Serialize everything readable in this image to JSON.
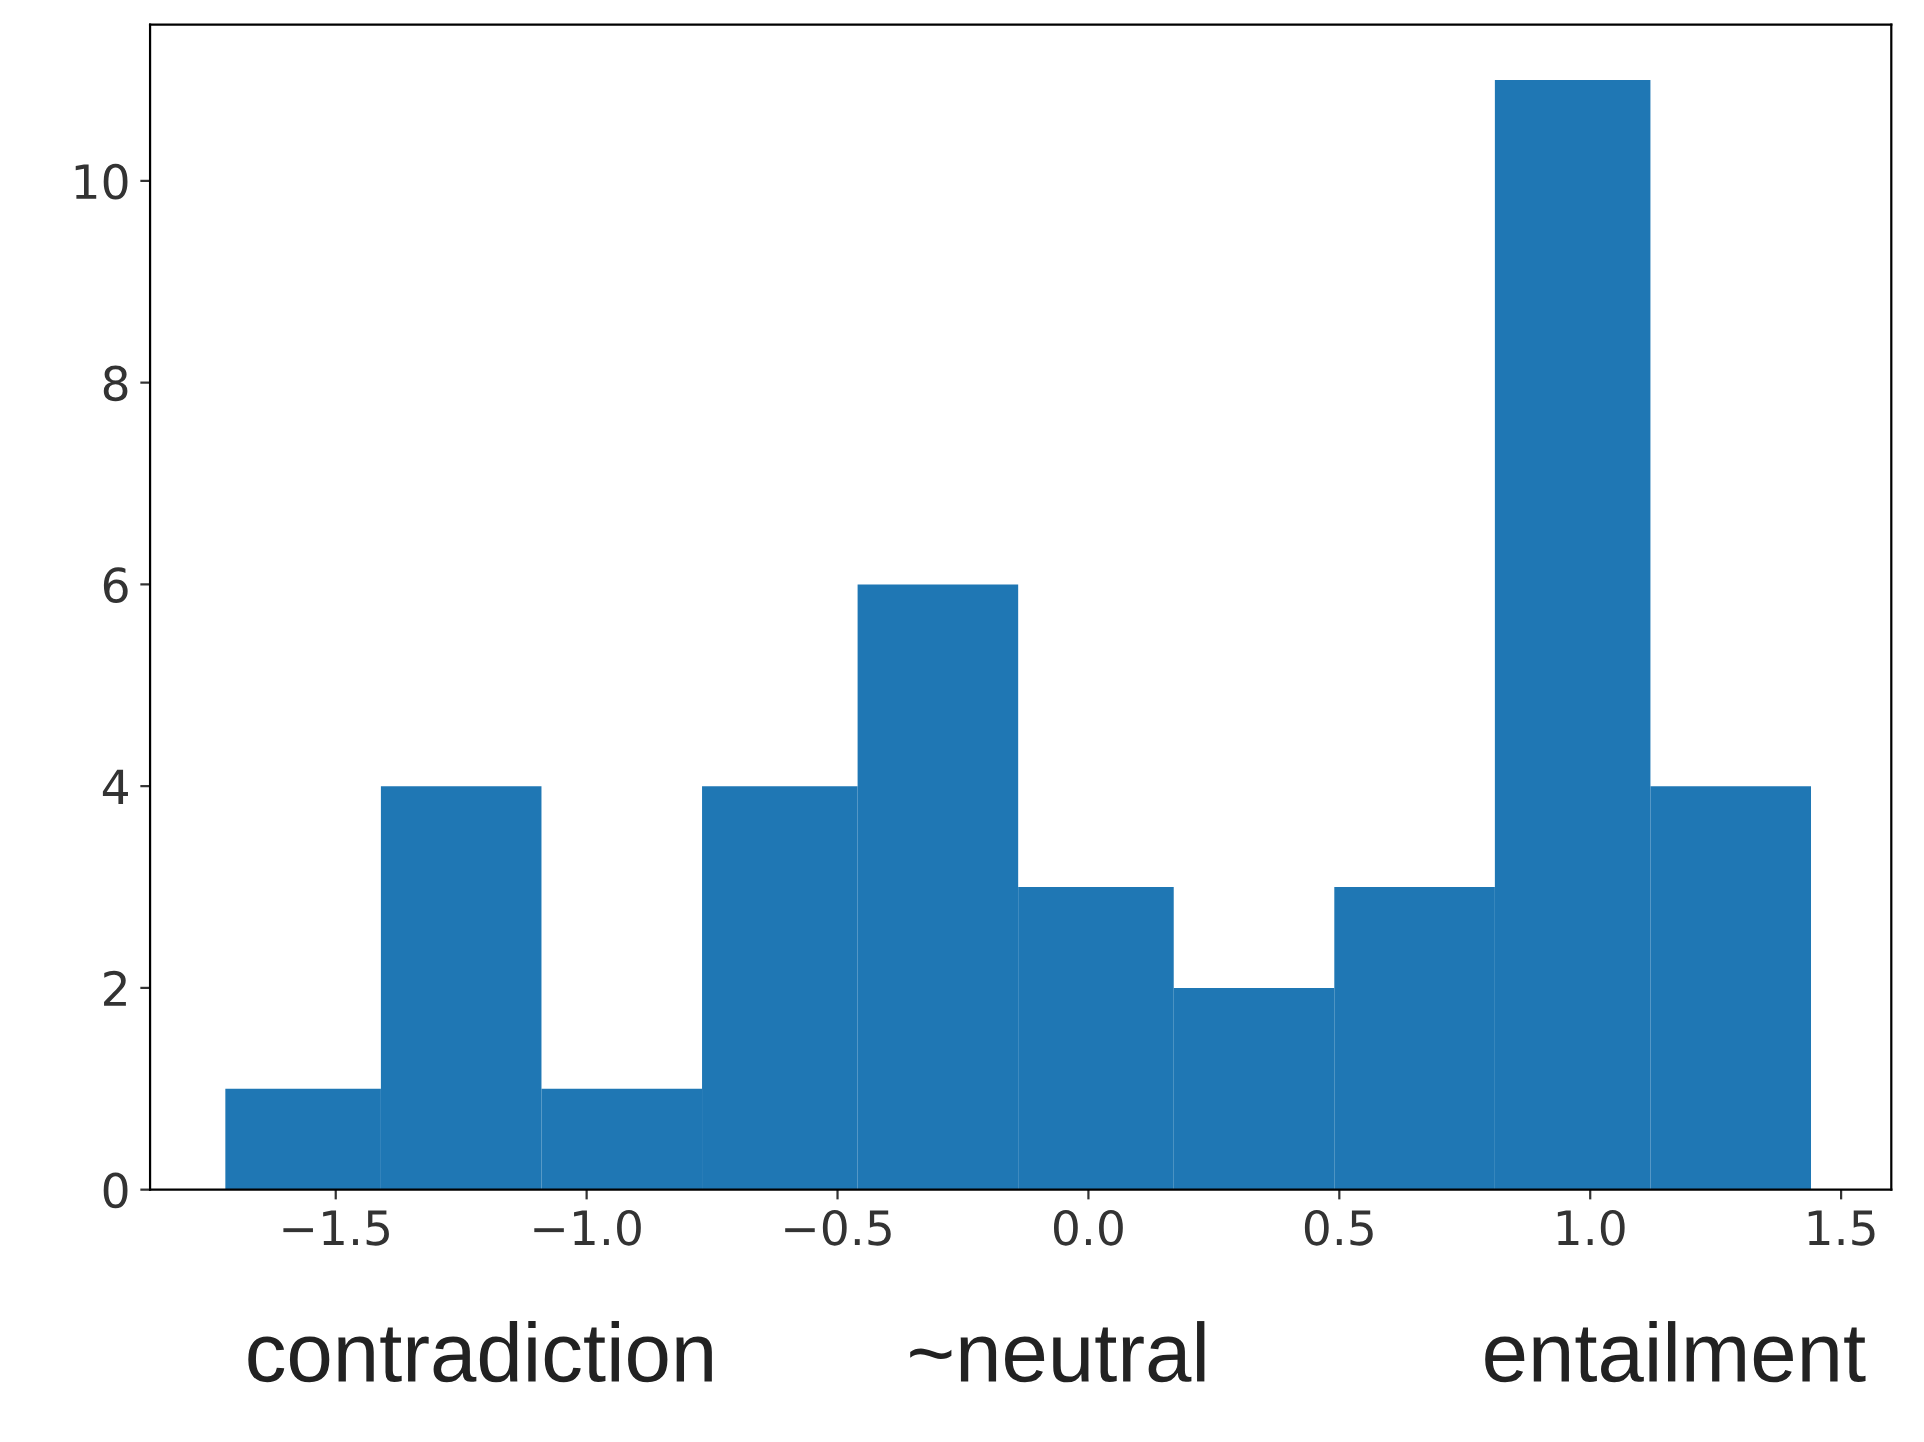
{
  "chart_data": {
    "type": "histogram",
    "bins": [
      -1.72,
      -1.41,
      -1.09,
      -0.77,
      -0.46,
      -0.14,
      0.17,
      0.49,
      0.81,
      1.12,
      1.44
    ],
    "values": [
      1,
      4,
      1,
      4,
      6,
      3,
      2,
      3,
      11,
      4
    ],
    "color": "#1f77b4",
    "xlim": [
      -1.87,
      1.6
    ],
    "xticks": [
      {
        "value": -1.5,
        "label": "−1.5"
      },
      {
        "value": -1.0,
        "label": "−1.0"
      },
      {
        "value": -0.5,
        "label": "−0.5"
      },
      {
        "value": 0.0,
        "label": "0.0"
      },
      0.5,
      {
        "value": 1.0,
        "label": "1.0"
      },
      1.5
    ],
    "ylim": [
      0,
      11.55
    ],
    "yticks": [
      0,
      2,
      4,
      6,
      8,
      10
    ],
    "annotations": [
      "contradiction",
      "~neutral",
      "entailment"
    ]
  }
}
